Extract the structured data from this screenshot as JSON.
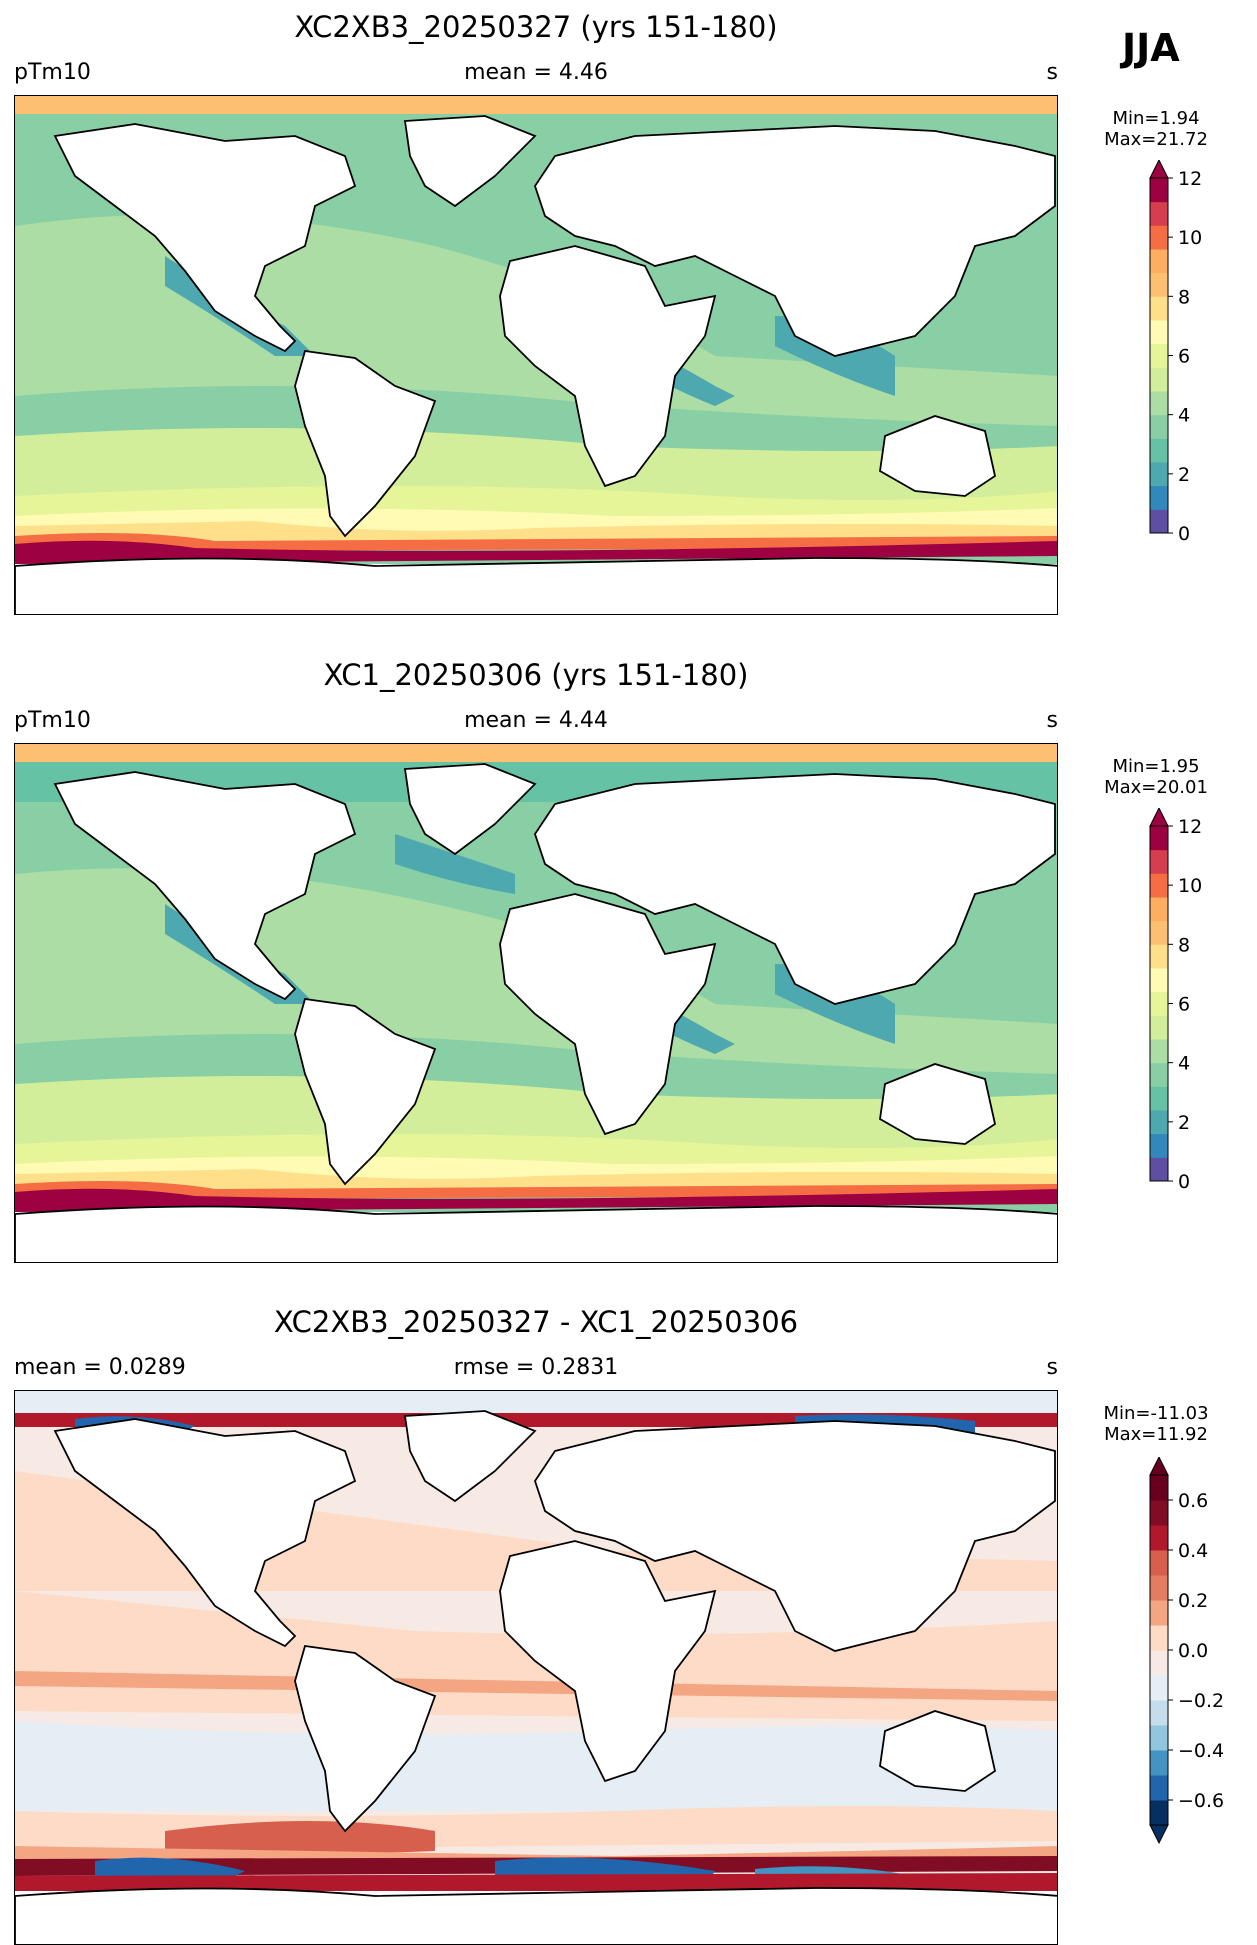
{
  "season": "JJA",
  "panels": [
    {
      "title": "XC2XB3_20250327 (yrs 151-180)",
      "left_label": "pTm10",
      "mid_label": "mean = 4.46",
      "right_label": "s",
      "min_label": "Min=1.94",
      "max_label": "Max=21.72",
      "colorbar": {
        "ticks": [
          "0",
          "2",
          "4",
          "6",
          "8",
          "10",
          "12"
        ],
        "colors": [
          "#5e4fa2",
          "#3288bd",
          "#4da8b0",
          "#66c2a5",
          "#89cfa5",
          "#abdda4",
          "#d3ee9b",
          "#e6f598",
          "#fffbb5",
          "#fee08b",
          "#fdc070",
          "#fdae61",
          "#f46d43",
          "#d53e4f",
          "#9e0142"
        ]
      }
    },
    {
      "title": "XC1_20250306 (yrs 151-180)",
      "left_label": "pTm10",
      "mid_label": "mean = 4.44",
      "right_label": "s",
      "min_label": "Min=1.95",
      "max_label": "Max=20.01",
      "colorbar": {
        "ticks": [
          "0",
          "2",
          "4",
          "6",
          "8",
          "10",
          "12"
        ],
        "colors": [
          "#5e4fa2",
          "#3288bd",
          "#4da8b0",
          "#66c2a5",
          "#89cfa5",
          "#abdda4",
          "#d3ee9b",
          "#e6f598",
          "#fffbb5",
          "#fee08b",
          "#fdc070",
          "#fdae61",
          "#f46d43",
          "#d53e4f",
          "#9e0142"
        ]
      }
    },
    {
      "title": "XC2XB3_20250327 - XC1_20250306",
      "left_label": "mean = 0.0289",
      "mid_label": "rmse = 0.2831",
      "right_label": "s",
      "min_label": "Min=-11.03",
      "max_label": "Max=11.92",
      "colorbar": {
        "ticks": [
          "−0.6",
          "−0.4",
          "−0.2",
          "0.0",
          "0.2",
          "0.4",
          "0.6"
        ],
        "colors": [
          "#053061",
          "#2166ac",
          "#4393c3",
          "#92c5de",
          "#c5dcec",
          "#e4eef4",
          "#f7e9e3",
          "#fddbc7",
          "#f4a582",
          "#e37c61",
          "#d6604d",
          "#b2182b",
          "#800d23",
          "#67001f"
        ]
      }
    }
  ]
}
